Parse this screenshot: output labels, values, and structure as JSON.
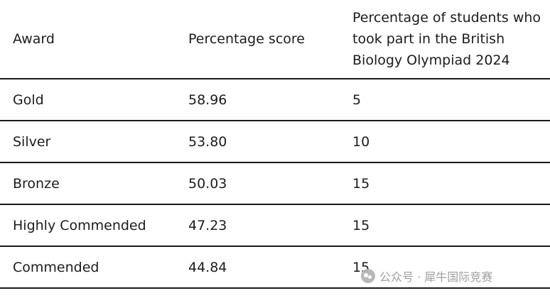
{
  "table": {
    "headers": [
      "Award",
      "Percentage score",
      "Percentage of students who took part in the British Biology Olympiad 2024"
    ],
    "rows": [
      [
        "Gold",
        "58.96",
        "5"
      ],
      [
        "Silver",
        "53.80",
        "10"
      ],
      [
        "Bronze",
        "50.03",
        "15"
      ],
      [
        "Highly Commended",
        "47.23",
        "15"
      ],
      [
        "Commended",
        "44.84",
        "15"
      ]
    ]
  },
  "watermark": {
    "text": "公众号 · 犀牛国际竞赛",
    "icon": "wechat-logo"
  }
}
